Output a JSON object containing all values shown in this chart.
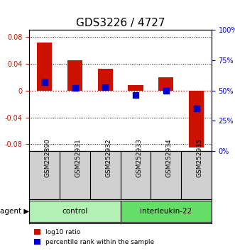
{
  "title": "GDS3226 / 4727",
  "samples": [
    "GSM252890",
    "GSM252931",
    "GSM252932",
    "GSM252933",
    "GSM252934",
    "GSM252935"
  ],
  "log10_ratio": [
    0.071,
    0.045,
    0.032,
    0.008,
    0.02,
    -0.085
  ],
  "percentile_rank": [
    57,
    52,
    53,
    46,
    50,
    35
  ],
  "ylim_left": [
    -0.09,
    0.09
  ],
  "ylim_right": [
    0,
    100
  ],
  "yticks_left": [
    -0.08,
    -0.04,
    0,
    0.04,
    0.08
  ],
  "yticks_right": [
    0,
    25,
    50,
    75,
    100
  ],
  "groups": [
    {
      "label": "control",
      "start": 0,
      "end": 3,
      "color": "#b3f0b3"
    },
    {
      "label": "interleukin-22",
      "start": 3,
      "end": 6,
      "color": "#66dd66"
    }
  ],
  "bar_color": "#cc1100",
  "dot_color": "#0000cc",
  "bar_width": 0.5,
  "dot_size": 30,
  "hline_color": "#cc1100",
  "hline_style": ":",
  "grid_color": "#000000",
  "grid_style": ":",
  "background_plot": "#ffffff",
  "background_sample": "#d0d0d0",
  "agent_label": "agent",
  "legend_log10": "log10 ratio",
  "legend_pct": "percentile rank within the sample",
  "left_yaxis_color": "#cc1100",
  "right_yaxis_color": "#0000cc"
}
